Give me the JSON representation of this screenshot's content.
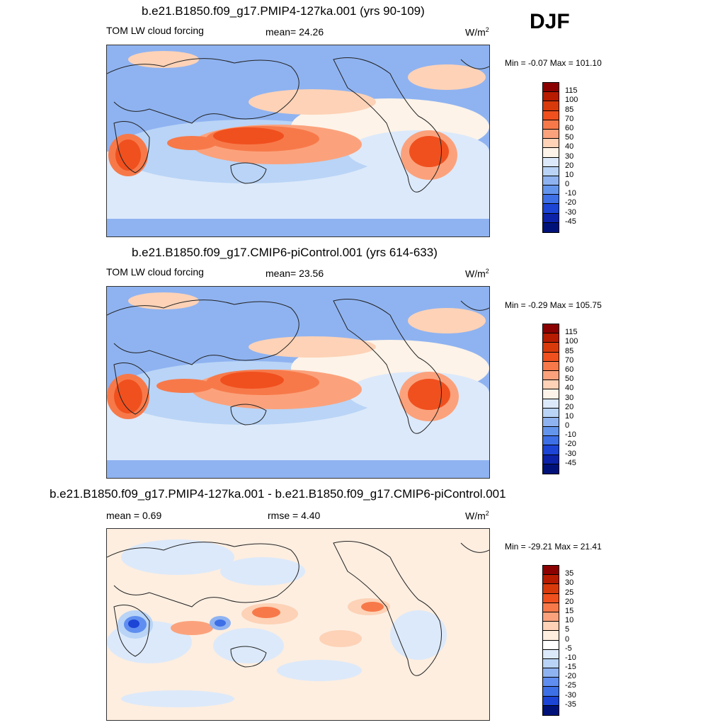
{
  "season": "DJF",
  "panels": [
    {
      "title": "b.e21.B1850.f09_g17.PMIP4-127ka.001 (yrs 90-109)",
      "left": "TOM LW cloud forcing",
      "mid": "mean=  24.26",
      "units": "W/m",
      "units_exp": "2",
      "minmax": "Min =  -0.07 Max = 101.10",
      "colorbar": {
        "levels": [
          "115",
          "100",
          "85",
          "70",
          "60",
          "50",
          "40",
          "30",
          "20",
          "10",
          "0",
          "-10",
          "-20",
          "-30",
          "-45"
        ],
        "colors": [
          "#8b0000",
          "#b71c00",
          "#d93a0b",
          "#f0501e",
          "#f7794a",
          "#fba27c",
          "#fdd2b6",
          "#fdf3e8",
          "#dce9fa",
          "#b9d4f6",
          "#8fb3f1",
          "#6495ed",
          "#3d6fe6",
          "#1c44d5",
          "#0c22a8",
          "#00127a"
        ]
      }
    },
    {
      "title": "b.e21.B1850.f09_g17.CMIP6-piControl.001 (yrs 614-633)",
      "left": "TOM LW cloud forcing",
      "mid": "mean=  23.56",
      "units": "W/m",
      "units_exp": "2",
      "minmax": "Min =  -0.29 Max = 105.75",
      "colorbar": {
        "levels": [
          "115",
          "100",
          "85",
          "70",
          "60",
          "50",
          "40",
          "30",
          "20",
          "10",
          "0",
          "-10",
          "-20",
          "-30",
          "-45"
        ],
        "colors": [
          "#8b0000",
          "#b71c00",
          "#d93a0b",
          "#f0501e",
          "#f7794a",
          "#fba27c",
          "#fdd2b6",
          "#fdf3e8",
          "#dce9fa",
          "#b9d4f6",
          "#8fb3f1",
          "#6495ed",
          "#3d6fe6",
          "#1c44d5",
          "#0c22a8",
          "#00127a"
        ]
      }
    },
    {
      "title": "b.e21.B1850.f09_g17.PMIP4-127ka.001 - b.e21.B1850.f09_g17.CMIP6-piControl.001",
      "left": "mean =   0.69",
      "mid": "rmse =   4.40",
      "units": "W/m",
      "units_exp": "2",
      "minmax": "Min = -29.21 Max =  21.41",
      "colorbar": {
        "levels": [
          "35",
          "30",
          "25",
          "20",
          "15",
          "10",
          "5",
          "0",
          "-5",
          "-10",
          "-15",
          "-20",
          "-25",
          "-30",
          "-35"
        ],
        "colors": [
          "#8b0000",
          "#b71c00",
          "#d93a0b",
          "#f0501e",
          "#f7794a",
          "#fba27c",
          "#fdd2b6",
          "#fdeee0",
          "#ffffff",
          "#dce9fa",
          "#b9d4f6",
          "#8fb3f1",
          "#5f8ef0",
          "#3d6fe6",
          "#1c44d5",
          "#00127a"
        ]
      }
    }
  ],
  "chart_data": [
    {
      "type": "heatmap",
      "title": "b.e21.B1850.f09_g17.PMIP4-127ka.001 (yrs 90-109)",
      "variable": "TOM LW cloud forcing",
      "mean": 24.26,
      "min": -0.07,
      "max": 101.1,
      "units": "W/m2",
      "contour_levels": [
        -45,
        -30,
        -20,
        -10,
        0,
        10,
        20,
        30,
        40,
        50,
        60,
        70,
        85,
        100,
        115
      ]
    },
    {
      "type": "heatmap",
      "title": "b.e21.B1850.f09_g17.CMIP6-piControl.001 (yrs 614-633)",
      "variable": "TOM LW cloud forcing",
      "mean": 23.56,
      "min": -0.29,
      "max": 105.75,
      "units": "W/m2",
      "contour_levels": [
        -45,
        -30,
        -20,
        -10,
        0,
        10,
        20,
        30,
        40,
        50,
        60,
        70,
        85,
        100,
        115
      ]
    },
    {
      "type": "heatmap",
      "title": "b.e21.B1850.f09_g17.PMIP4-127ka.001 - b.e21.B1850.f09_g17.CMIP6-piControl.001",
      "mean": 0.69,
      "rmse": 4.4,
      "min": -29.21,
      "max": 21.41,
      "units": "W/m2",
      "contour_levels": [
        -35,
        -30,
        -25,
        -20,
        -15,
        -10,
        -5,
        0,
        5,
        10,
        15,
        20,
        25,
        30,
        35
      ]
    }
  ]
}
